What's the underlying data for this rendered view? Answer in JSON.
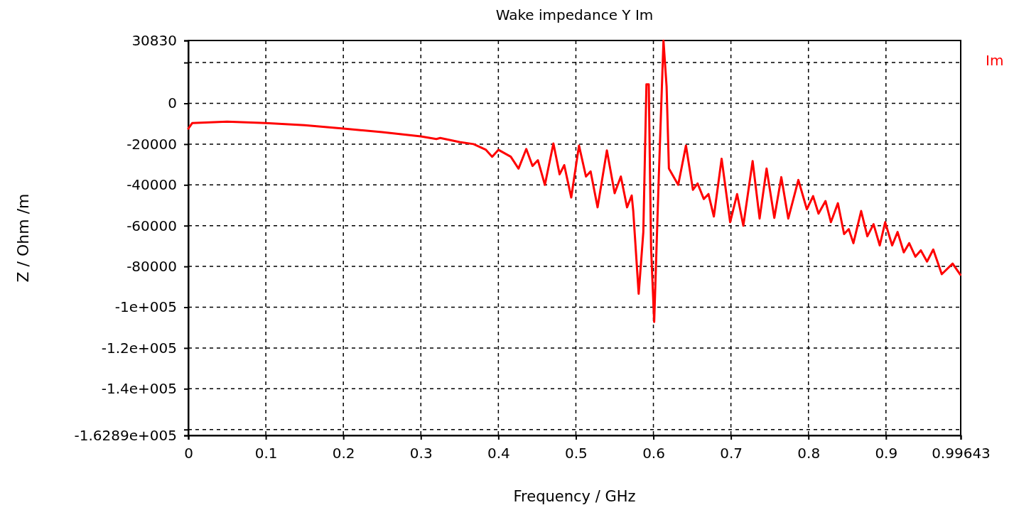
{
  "chart_data": {
    "type": "line",
    "title": "Wake impedance Y Im",
    "xlabel": "Frequency / GHz",
    "ylabel": "Z / Ohm /m",
    "xlim": [
      0,
      0.99643
    ],
    "xticks": [
      0,
      0.1,
      0.2,
      0.3,
      0.4,
      0.5,
      0.6,
      0.7,
      0.8,
      0.9,
      0.99643
    ],
    "ylim": [
      -162890,
      30830
    ],
    "yticks": [
      30830,
      {
        "value": 20000,
        "label": null
      },
      0,
      -20000,
      -40000,
      -60000,
      -80000,
      {
        "value": -100000,
        "label": "-1e+005"
      },
      {
        "value": -120000,
        "label": "-1.2e+005"
      },
      {
        "value": -140000,
        "label": "-1.4e+005"
      },
      {
        "value": -160000,
        "label": null
      },
      {
        "value": -162890,
        "label": "-1.6289e+005"
      }
    ],
    "grid": true,
    "legend": "top right",
    "line_style": "solid",
    "marker": "none",
    "series": [
      {
        "name": "Im",
        "color": "#ff0000",
        "x": [
          0,
          0.005,
          0.05,
          0.1,
          0.15,
          0.2,
          0.25,
          0.3,
          0.32,
          0.325,
          0.35,
          0.368,
          0.384,
          0.392,
          0.4,
          0.416,
          0.426,
          0.436,
          0.444,
          0.451,
          0.46,
          0.471,
          0.479,
          0.485,
          0.494,
          0.504,
          0.513,
          0.519,
          0.528,
          0.54,
          0.55,
          0.558,
          0.566,
          0.572,
          0.574,
          0.581,
          0.587,
          0.591,
          0.594,
          0.597,
          0.601,
          0.607,
          0.613,
          0.617,
          0.62,
          0.632,
          0.642,
          0.651,
          0.657,
          0.665,
          0.671,
          0.678,
          0.688,
          0.699,
          0.708,
          0.716,
          0.728,
          0.737,
          0.746,
          0.756,
          0.765,
          0.774,
          0.787,
          0.798,
          0.806,
          0.813,
          0.822,
          0.829,
          0.838,
          0.846,
          0.852,
          0.858,
          0.868,
          0.876,
          0.884,
          0.892,
          0.899,
          0.908,
          0.915,
          0.923,
          0.93,
          0.938,
          0.945,
          0.953,
          0.961,
          0.972,
          0.986,
          0.996
        ],
        "values": [
          -12400,
          -9700,
          -9000,
          -9700,
          -10700,
          -12400,
          -14100,
          -16200,
          -17500,
          -17000,
          -19000,
          -20000,
          -22800,
          -26200,
          -22800,
          -26200,
          -32000,
          -22400,
          -30700,
          -27900,
          -40000,
          -19700,
          -34800,
          -30300,
          -46200,
          -20700,
          -35900,
          -33400,
          -51000,
          -23100,
          -44100,
          -35900,
          -51000,
          -45200,
          -52800,
          -93400,
          -63100,
          9300,
          9300,
          -71000,
          -107200,
          -35500,
          30700,
          8300,
          -32000,
          -40000,
          -20700,
          -42400,
          -39300,
          -46900,
          -44500,
          -55500,
          -27200,
          -58300,
          -44500,
          -60000,
          -28300,
          -56500,
          -32000,
          -56200,
          -36200,
          -56500,
          -37600,
          -52000,
          -45500,
          -54100,
          -47900,
          -58300,
          -49000,
          -64100,
          -61700,
          -68600,
          -52800,
          -65200,
          -59300,
          -69700,
          -58300,
          -69700,
          -63100,
          -73100,
          -68600,
          -75200,
          -72100,
          -77600,
          -71700,
          -83800,
          -78600,
          -84100
        ]
      }
    ]
  }
}
